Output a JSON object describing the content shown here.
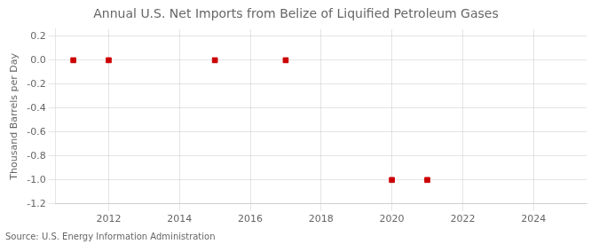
{
  "chart_data": {
    "type": "scatter",
    "title": "Annual U.S. Net Imports from Belize of Liquified Petroleum Gases",
    "y_label": "Thousand Barrels per Day",
    "annotations": [
      "Source: U.S. Energy Information Administration"
    ],
    "x": [
      2011,
      2012,
      2015,
      2017,
      2020,
      2021
    ],
    "values": [
      0,
      0,
      0,
      0,
      -1,
      -1
    ],
    "color": "#cc0000",
    "marker": "square",
    "xlim": [
      2010.5,
      2025.5
    ],
    "xticks": [
      2012,
      2014,
      2016,
      2018,
      2020,
      2022,
      2024
    ],
    "ylim": [
      -1.2,
      0.26
    ],
    "yticks": [
      0.2,
      {
        "value": 0.0,
        "label": "0.0"
      },
      -0.2,
      -0.4,
      -0.6,
      -0.8,
      {
        "value": -1.0,
        "label": "-1.0"
      },
      -1.2
    ],
    "grid": true
  }
}
